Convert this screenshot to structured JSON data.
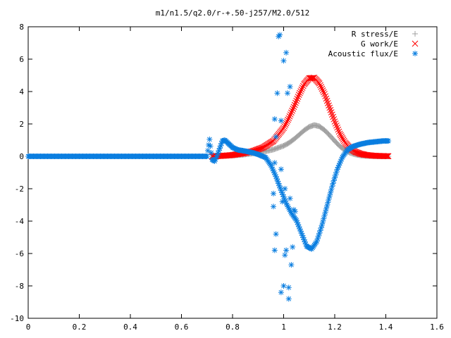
{
  "chart_data": {
    "type": "scatter",
    "title": "m1/n1.5/q2.0/r-+.50-j257/M2.0/512",
    "xlabel": "",
    "ylabel": "",
    "xlim": [
      0,
      1.6
    ],
    "ylim": [
      -10,
      8
    ],
    "x_ticks": [
      "0",
      "0.2",
      "0.4",
      "0.6",
      "0.8",
      "1",
      "1.2",
      "1.4",
      "1.6"
    ],
    "y_ticks": [
      "-10",
      "-8",
      "-6",
      "-4",
      "-2",
      "0",
      "2",
      "4",
      "6",
      "8"
    ],
    "grid": false,
    "legend_position": "top-right",
    "series": [
      {
        "name": "R stress/E",
        "color": "#a0a0a0",
        "marker": "plus",
        "x": [
          0.72,
          0.76,
          0.8,
          0.84,
          0.88,
          0.92,
          0.96,
          1.0,
          1.02,
          1.04,
          1.06,
          1.08,
          1.1,
          1.12,
          1.14,
          1.16,
          1.18,
          1.2,
          1.22,
          1.24,
          1.26,
          1.28,
          1.3,
          1.32,
          1.35,
          1.38,
          1.41
        ],
        "y": [
          0.0,
          0.02,
          0.05,
          0.1,
          0.18,
          0.28,
          0.42,
          0.65,
          0.82,
          1.05,
          1.32,
          1.6,
          1.82,
          1.93,
          1.85,
          1.62,
          1.3,
          0.95,
          0.62,
          0.38,
          0.22,
          0.12,
          0.06,
          0.03,
          0.01,
          0.0,
          0.0
        ]
      },
      {
        "name": "G work/E",
        "color": "#ff0000",
        "marker": "cross",
        "x": [
          0.72,
          0.76,
          0.8,
          0.84,
          0.88,
          0.92,
          0.96,
          1.0,
          1.02,
          1.04,
          1.06,
          1.08,
          1.1,
          1.12,
          1.14,
          1.16,
          1.18,
          1.2,
          1.22,
          1.24,
          1.26,
          1.28,
          1.3,
          1.32,
          1.35,
          1.38,
          1.41
        ],
        "y": [
          0.0,
          0.03,
          0.08,
          0.18,
          0.32,
          0.55,
          0.95,
          1.75,
          2.35,
          3.05,
          3.8,
          4.45,
          4.82,
          4.85,
          4.5,
          3.85,
          3.0,
          2.15,
          1.4,
          0.85,
          0.5,
          0.28,
          0.16,
          0.09,
          0.04,
          0.02,
          0.01
        ]
      },
      {
        "name": "Acoustic flux/E",
        "color": "#0a7ee0",
        "marker": "star",
        "x": [
          0.0,
          0.1,
          0.2,
          0.3,
          0.4,
          0.5,
          0.6,
          0.7,
          0.71,
          0.72,
          0.73,
          0.74,
          0.75,
          0.76,
          0.77,
          0.78,
          0.8,
          0.82,
          0.85,
          0.88,
          0.9,
          0.93,
          0.95,
          0.97,
          0.99,
          1.01,
          1.03,
          1.05,
          1.07,
          1.09,
          1.11,
          1.13,
          1.15,
          1.17,
          1.19,
          1.21,
          1.23,
          1.25,
          1.27,
          1.3,
          1.33,
          1.36,
          1.39,
          1.41
        ],
        "y": [
          0.0,
          0.0,
          0.0,
          0.0,
          0.0,
          0.0,
          0.0,
          0.0,
          1.05,
          -0.2,
          -0.3,
          0.05,
          0.5,
          0.95,
          1.0,
          0.85,
          0.55,
          0.4,
          0.32,
          0.22,
          0.12,
          -0.08,
          -0.55,
          -1.25,
          -2.1,
          -2.9,
          -3.5,
          -3.95,
          -4.75,
          -5.55,
          -5.72,
          -5.25,
          -4.25,
          -3.05,
          -1.85,
          -0.8,
          -0.05,
          0.4,
          0.6,
          0.75,
          0.85,
          0.9,
          0.95,
          0.95
        ]
      }
    ],
    "scatter_points": {
      "series": "Acoustic flux/E",
      "x": [
        0.965,
        0.97,
        0.975,
        0.965,
        0.98,
        0.985,
        0.99,
        0.99,
        0.995,
        1.0,
        1.005,
        1.01,
        1.015,
        1.02,
        1.02,
        1.025,
        1.03,
        1.035,
        0.96,
        0.96,
        0.965,
        0.97,
        0.99,
        1.005,
        1.0,
        1.01,
        1.025,
        1.04,
        1.045
      ],
      "y": [
        2.3,
        1.2,
        3.9,
        -0.4,
        7.4,
        7.5,
        -0.8,
        2.2,
        -2.8,
        5.9,
        -2.0,
        6.4,
        3.9,
        -8.1,
        -8.8,
        4.3,
        -6.7,
        -5.6,
        -3.1,
        -2.3,
        -5.8,
        -4.8,
        -8.4,
        -6.1,
        -8.0,
        -5.8,
        -2.6,
        -3.3,
        -3.4
      ]
    }
  }
}
